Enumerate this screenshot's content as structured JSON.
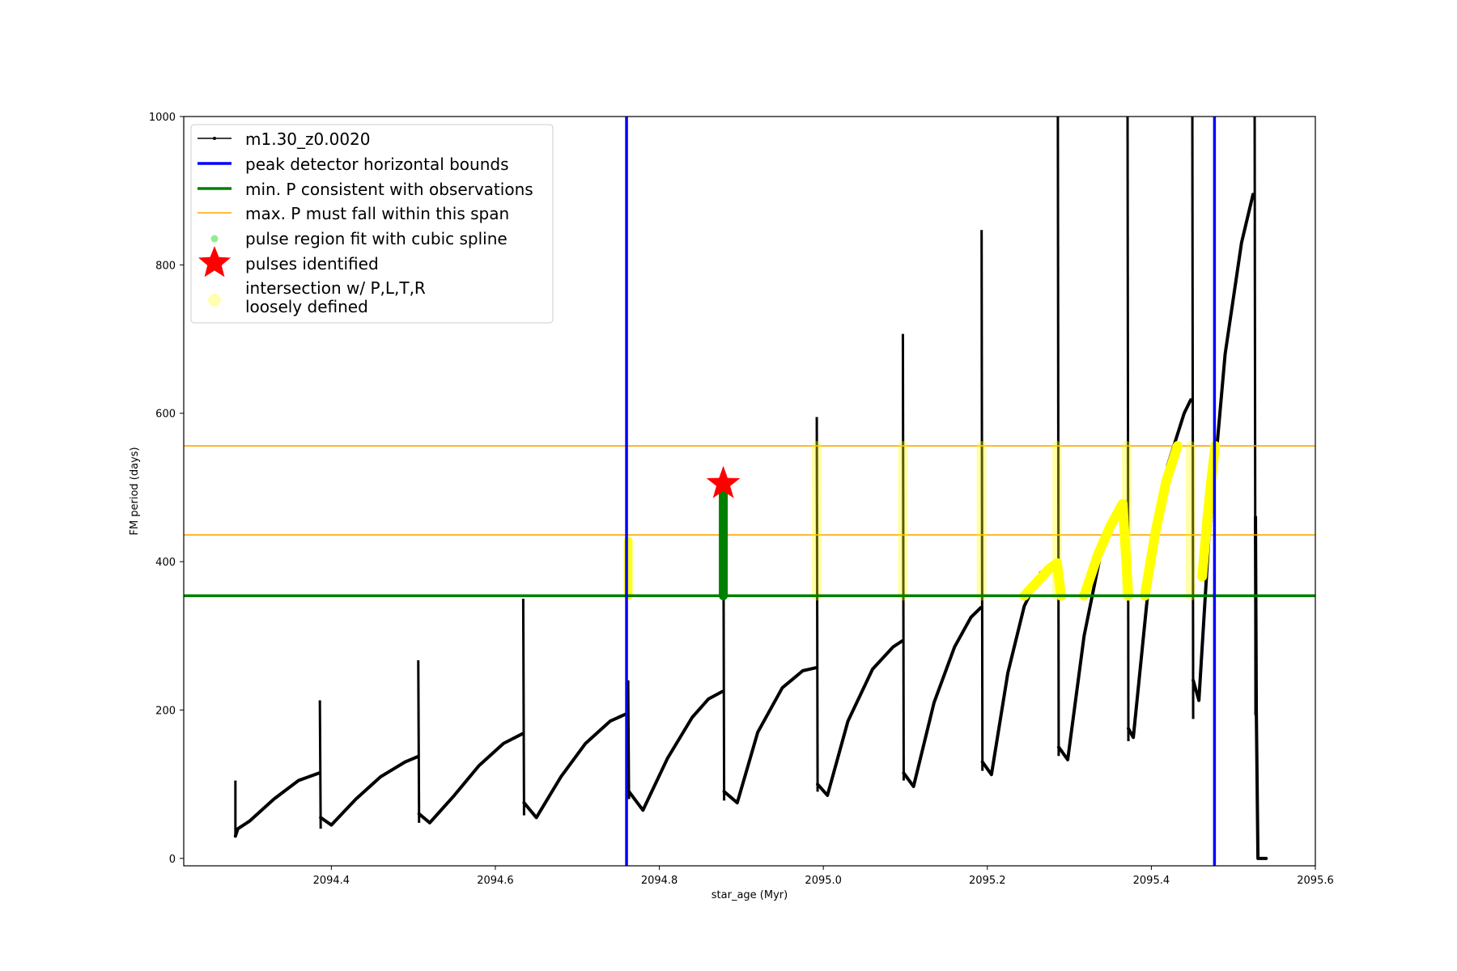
{
  "chart_data": {
    "type": "line",
    "xlabel": "star_age (Myr)",
    "ylabel": "FM period (days)",
    "xlim": [
      2094.22,
      2095.6
    ],
    "ylim": [
      -10,
      1000
    ],
    "x_ticks": [
      2094.4,
      2094.6,
      2094.8,
      2095.0,
      2095.2,
      2095.4,
      2095.6
    ],
    "x_tick_labels": [
      "2094.4",
      "2094.6",
      "2094.8",
      "2095.0",
      "2095.2",
      "2095.4",
      "2095.6"
    ],
    "y_ticks": [
      0,
      200,
      400,
      600,
      800,
      1000
    ],
    "y_tick_labels": [
      "0",
      "200",
      "400",
      "600",
      "800",
      "1000"
    ],
    "legend_position": "upper-left",
    "legend": {
      "model_label": "m1.30_z0.0020",
      "bounds_label": "peak detector horizontal bounds",
      "min_label": "min. P consistent with observations",
      "max_label": "max. P must fall within this span",
      "spline_label": "pulse region fit with cubic spline",
      "pulses_label": "pulses identified",
      "intersect_label_1": "intersection w/ P,L,T,R",
      "intersect_label_2": "loosely defined"
    },
    "colors": {
      "model": "#000000",
      "bounds": "#0000ff",
      "min": "#008000",
      "max": "#ffa500",
      "spline": "#90ee90",
      "pulses": "#ff0000",
      "intersect": "#ffff00"
    },
    "vertical_bounds_x": [
      2094.76,
      2095.477
    ],
    "min_period": 354,
    "max_period_span": [
      436,
      556
    ],
    "pulse_identified": {
      "x": 2094.878,
      "y": 505
    },
    "spline_segment": {
      "x": 2094.878,
      "y_range": [
        354,
        497
      ]
    },
    "intersections_vertical": [
      {
        "x": 2094.762,
        "y_range": [
          354,
          428
        ]
      },
      {
        "x": 2094.992,
        "y_range": [
          354,
          556
        ]
      },
      {
        "x": 2095.097,
        "y_range": [
          354,
          556
        ]
      },
      {
        "x": 2095.193,
        "y_range": [
          354,
          556
        ]
      },
      {
        "x": 2095.285,
        "y_range": [
          354,
          556
        ]
      },
      {
        "x": 2095.37,
        "y_range": [
          354,
          556
        ]
      },
      {
        "x": 2095.448,
        "y_range": [
          354,
          556
        ]
      }
    ],
    "intersections_curves": [
      {
        "x": [
          2095.245,
          2095.26,
          2095.275,
          2095.285,
          2095.29
        ],
        "y": [
          354,
          372,
          390,
          398,
          354
        ]
      },
      {
        "x": [
          2095.318,
          2095.335,
          2095.35,
          2095.365,
          2095.372
        ],
        "y": [
          354,
          410,
          448,
          478,
          354
        ]
      },
      {
        "x": [
          2095.392,
          2095.405,
          2095.418,
          2095.432
        ],
        "y": [
          354,
          440,
          508,
          556
        ]
      },
      {
        "x": [
          2095.462,
          2095.468,
          2095.473,
          2095.478
        ],
        "y": [
          380,
          455,
          510,
          556
        ]
      }
    ],
    "series": [
      {
        "name": "m1.30_z0.0020",
        "pulses": [
          {
            "start": [
              2094.283,
              105
            ],
            "drop": [
              2094.283,
              30
            ],
            "rise": [
              [
                2094.283,
                30
              ],
              [
                2094.286,
                40
              ],
              [
                2094.3,
                50
              ],
              [
                2094.33,
                80
              ],
              [
                2094.36,
                105
              ],
              [
                2094.385,
                115
              ]
            ]
          },
          {
            "start": [
              2094.386,
              213
            ],
            "drop": [
              2094.387,
              40
            ],
            "rise": [
              [
                2094.387,
                55
              ],
              [
                2094.4,
                45
              ],
              [
                2094.43,
                80
              ],
              [
                2094.46,
                110
              ],
              [
                2094.49,
                130
              ],
              [
                2094.505,
                137
              ]
            ]
          },
          {
            "start": [
              2094.506,
              267
            ],
            "drop": [
              2094.507,
              48
            ],
            "rise": [
              [
                2094.507,
                60
              ],
              [
                2094.52,
                48
              ],
              [
                2094.55,
                85
              ],
              [
                2094.58,
                125
              ],
              [
                2094.61,
                155
              ],
              [
                2094.633,
                168
              ]
            ]
          },
          {
            "start": [
              2094.634,
              350
            ],
            "drop": [
              2094.635,
              58
            ],
            "rise": [
              [
                2094.635,
                75
              ],
              [
                2094.65,
                55
              ],
              [
                2094.68,
                110
              ],
              [
                2094.71,
                155
              ],
              [
                2094.74,
                185
              ],
              [
                2094.76,
                195
              ]
            ]
          },
          {
            "start": [
              2094.762,
              240
            ],
            "drop": [
              2094.763,
              80
            ],
            "rise": [
              [
                2094.763,
                90
              ],
              [
                2094.78,
                65
              ],
              [
                2094.81,
                135
              ],
              [
                2094.84,
                190
              ],
              [
                2094.86,
                215
              ],
              [
                2094.877,
                225
              ]
            ]
          },
          {
            "start": [
              2094.878,
              505
            ],
            "drop": [
              2094.879,
              78
            ],
            "rise": [
              [
                2094.879,
                90
              ],
              [
                2094.895,
                75
              ],
              [
                2094.92,
                170
              ],
              [
                2094.95,
                230
              ],
              [
                2094.975,
                253
              ],
              [
                2094.991,
                257
              ]
            ]
          },
          {
            "start": [
              2094.992,
              595
            ],
            "drop": [
              2094.993,
              90
            ],
            "rise": [
              [
                2094.993,
                100
              ],
              [
                2095.005,
                85
              ],
              [
                2095.03,
                185
              ],
              [
                2095.06,
                255
              ],
              [
                2095.085,
                285
              ],
              [
                2095.096,
                293
              ]
            ]
          },
          {
            "start": [
              2095.097,
              707
            ],
            "drop": [
              2095.098,
              105
            ],
            "rise": [
              [
                2095.098,
                115
              ],
              [
                2095.11,
                97
              ],
              [
                2095.135,
                210
              ],
              [
                2095.16,
                285
              ],
              [
                2095.18,
                325
              ],
              [
                2095.192,
                338
              ]
            ]
          },
          {
            "start": [
              2095.193,
              847
            ],
            "drop": [
              2095.194,
              118
            ],
            "rise": [
              [
                2095.194,
                130
              ],
              [
                2095.205,
                113
              ],
              [
                2095.225,
                250
              ],
              [
                2095.245,
                340
              ],
              [
                2095.265,
                385
              ],
              [
                2095.284,
                398
              ]
            ]
          },
          {
            "start": [
              2095.286,
              1000
            ],
            "drop": [
              2095.287,
              138
            ],
            "rise": [
              [
                2095.287,
                150
              ],
              [
                2095.298,
                133
              ],
              [
                2095.318,
                300
              ],
              [
                2095.34,
                420
              ],
              [
                2095.36,
                470
              ],
              [
                2095.369,
                480
              ]
            ]
          },
          {
            "start": [
              2095.371,
              1000
            ],
            "drop": [
              2095.372,
              158
            ],
            "rise": [
              [
                2095.372,
                175
              ],
              [
                2095.378,
                163
              ],
              [
                2095.395,
                350
              ],
              [
                2095.42,
                530
              ],
              [
                2095.44,
                600
              ],
              [
                2095.448,
                618
              ]
            ]
          },
          {
            "start": [
              2095.45,
              1000
            ],
            "drop": [
              2095.451,
              188
            ],
            "rise": [
              [
                2095.451,
                240
              ],
              [
                2095.458,
                213
              ],
              [
                2095.47,
                430
              ],
              [
                2095.49,
                680
              ],
              [
                2095.51,
                830
              ],
              [
                2095.524,
                895
              ]
            ]
          },
          {
            "start": [
              2095.526,
              1000
            ],
            "drop": [
              2095.527,
              193
            ],
            "rise": [
              [
                2095.527,
                460
              ],
              [
                2095.528,
                200
              ],
              [
                2095.53,
                0
              ],
              [
                2095.54,
                0
              ]
            ]
          }
        ]
      }
    ]
  }
}
